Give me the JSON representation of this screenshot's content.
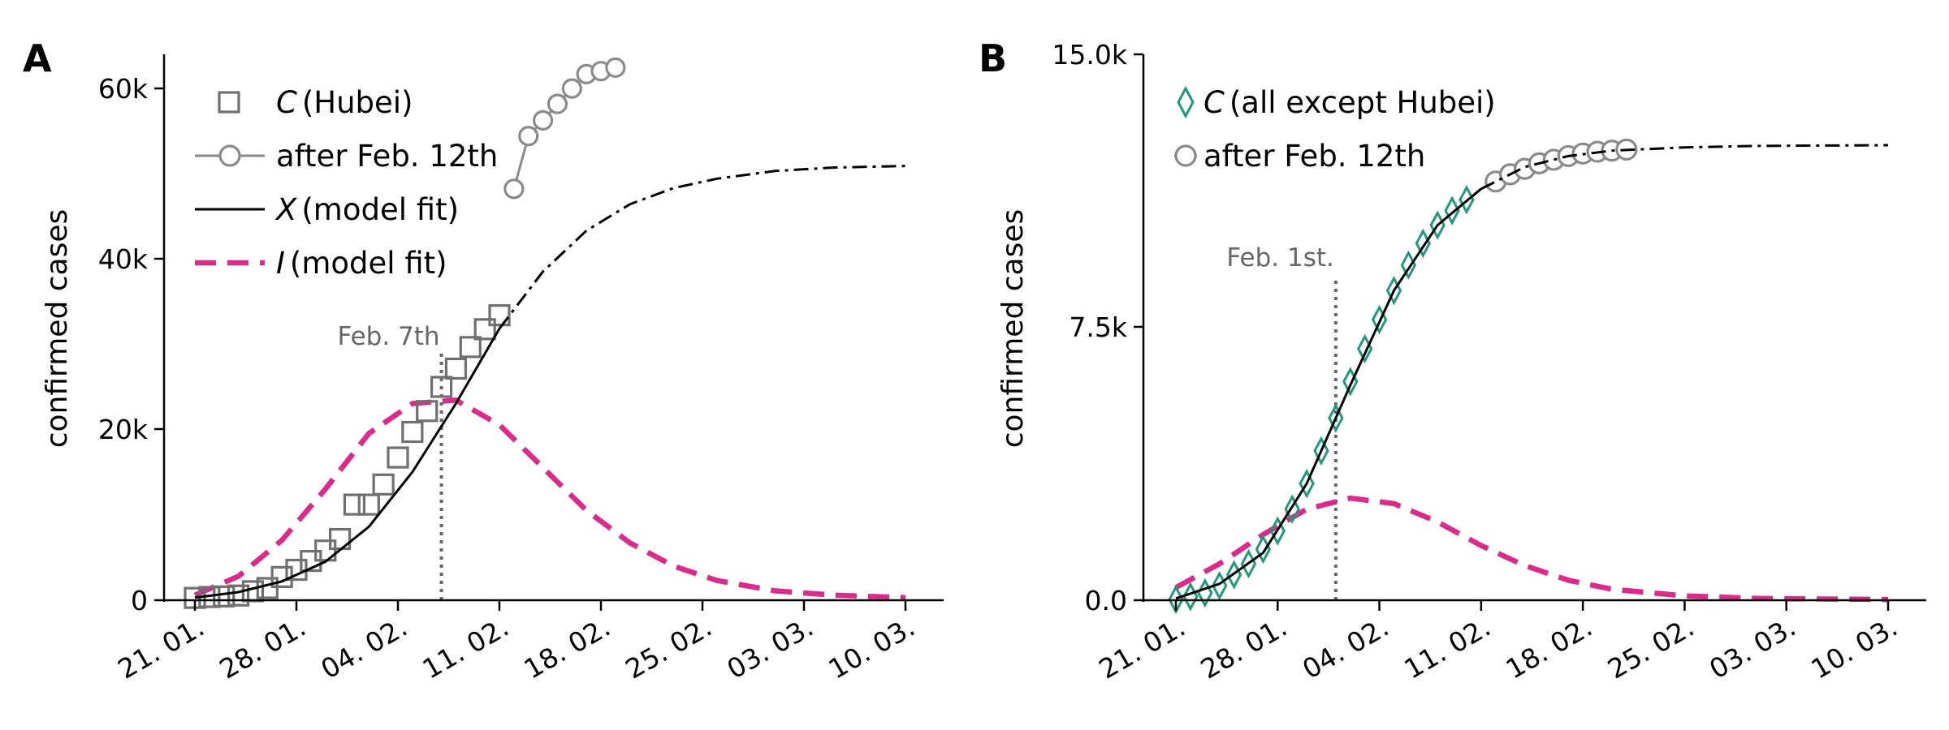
{
  "colors": {
    "data_gray": "#707070",
    "after_gray": "#8a8a8a",
    "model_black": "#000000",
    "infected_pink": "#e0288c",
    "green": "#1e9a78",
    "annot_gray": "#666666"
  },
  "chart_data": [
    {
      "type": "line",
      "panel": "A",
      "ylabel": "confirmed cases",
      "xlabel": "",
      "x_ticks": [
        "21. 01.",
        "28. 01.",
        "04. 02.",
        "11. 02.",
        "18. 02.",
        "25. 02.",
        "03. 03.",
        "10. 03."
      ],
      "y_ticks": [
        "0",
        "20k",
        "40k",
        "60k"
      ],
      "ylim": [
        0,
        64000
      ],
      "xlim": [
        "2020-01-21",
        "2020-03-10"
      ],
      "annotation": {
        "label": "Feb. 7th",
        "x": "2020-02-07"
      },
      "legend": {
        "placement": "top-left",
        "entries": [
          {
            "prefix": "C",
            "text": "(Hubei)",
            "marker": "square"
          },
          {
            "prefix": "",
            "text": "after Feb. 12th",
            "marker": "circle-line"
          },
          {
            "prefix": "X",
            "text": "(model fit)",
            "marker": "solid-line"
          },
          {
            "prefix": "I",
            "text": "(model fit)",
            "marker": "dashed-line"
          }
        ]
      },
      "series": [
        {
          "name": "C (Hubei)",
          "marker": "square",
          "points": [
            [
              "2020-01-21",
              270
            ],
            [
              "2020-01-22",
              375
            ],
            [
              "2020-01-23",
              444
            ],
            [
              "2020-01-24",
              549
            ],
            [
              "2020-01-25",
              1052
            ],
            [
              "2020-01-26",
              1423
            ],
            [
              "2020-01-27",
              2714
            ],
            [
              "2020-01-28",
              3554
            ],
            [
              "2020-01-29",
              4586
            ],
            [
              "2020-01-30",
              5806
            ],
            [
              "2020-01-31",
              7153
            ],
            [
              "2020-02-01",
              11177
            ],
            [
              "2020-02-02",
              11177
            ],
            [
              "2020-02-03",
              13522
            ],
            [
              "2020-02-04",
              16678
            ],
            [
              "2020-02-05",
              19665
            ],
            [
              "2020-02-06",
              22112
            ],
            [
              "2020-02-07",
              24953
            ],
            [
              "2020-02-08",
              27100
            ],
            [
              "2020-02-09",
              29631
            ],
            [
              "2020-02-10",
              31728
            ],
            [
              "2020-02-11",
              33366
            ]
          ]
        },
        {
          "name": "after Feb. 12th",
          "marker": "circle-line",
          "points": [
            [
              "2020-02-12",
              48206
            ],
            [
              "2020-02-13",
              54406
            ],
            [
              "2020-02-14",
              56249
            ],
            [
              "2020-02-15",
              58182
            ],
            [
              "2020-02-16",
              59989
            ],
            [
              "2020-02-17",
              61682
            ],
            [
              "2020-02-18",
              62031
            ],
            [
              "2020-02-19",
              62442
            ]
          ]
        },
        {
          "name": "X (model fit)",
          "style": "solid until 2020-02-11, dash-dot after",
          "points": [
            [
              "2020-01-21",
              300
            ],
            [
              "2020-01-24",
              950
            ],
            [
              "2020-01-27",
              2200
            ],
            [
              "2020-01-30",
              4500
            ],
            [
              "2020-02-02",
              8600
            ],
            [
              "2020-02-05",
              15000
            ],
            [
              "2020-02-08",
              23000
            ],
            [
              "2020-02-11",
              31800
            ],
            [
              "2020-02-14",
              38500
            ],
            [
              "2020-02-17",
              43300
            ],
            [
              "2020-02-20",
              46400
            ],
            [
              "2020-02-23",
              48300
            ],
            [
              "2020-02-26",
              49400
            ],
            [
              "2020-03-01",
              50300
            ],
            [
              "2020-03-05",
              50700
            ],
            [
              "2020-03-10",
              50900
            ]
          ]
        },
        {
          "name": "I (model fit)",
          "style": "dashed",
          "points": [
            [
              "2020-01-21",
              600
            ],
            [
              "2020-01-24",
              2800
            ],
            [
              "2020-01-27",
              7000
            ],
            [
              "2020-01-30",
              13000
            ],
            [
              "2020-02-02",
              19500
            ],
            [
              "2020-02-05",
              23000
            ],
            [
              "2020-02-08",
              23400
            ],
            [
              "2020-02-11",
              20500
            ],
            [
              "2020-02-14",
              15500
            ],
            [
              "2020-02-17",
              10500
            ],
            [
              "2020-02-20",
              6700
            ],
            [
              "2020-02-23",
              4000
            ],
            [
              "2020-02-26",
              2300
            ],
            [
              "2020-03-01",
              1100
            ],
            [
              "2020-03-05",
              600
            ],
            [
              "2020-03-10",
              300
            ]
          ]
        }
      ]
    },
    {
      "type": "line",
      "panel": "B",
      "ylabel": "confirmed cases",
      "xlabel": "",
      "x_ticks": [
        "21. 01.",
        "28. 01.",
        "04. 02.",
        "11. 02.",
        "18. 02.",
        "25. 02.",
        "03. 03.",
        "10. 03."
      ],
      "y_ticks": [
        "0.0",
        "7.5k",
        "15.0k"
      ],
      "ylim": [
        0,
        15000
      ],
      "xlim": [
        "2020-01-21",
        "2020-03-10"
      ],
      "annotation": {
        "label": "Feb. 1st.",
        "x": "2020-02-01"
      },
      "legend": {
        "placement": "top-left",
        "entries": [
          {
            "prefix": "C",
            "text": "(all except Hubei)",
            "marker": "diamond"
          },
          {
            "prefix": "",
            "text": "after Feb. 12th",
            "marker": "circle-line"
          }
        ]
      },
      "series": [
        {
          "name": "C (all except Hubei)",
          "marker": "diamond",
          "points": [
            [
              "2020-01-21",
              20
            ],
            [
              "2020-01-22",
              100
            ],
            [
              "2020-01-23",
              200
            ],
            [
              "2020-01-24",
              400
            ],
            [
              "2020-01-25",
              700
            ],
            [
              "2020-01-26",
              1000
            ],
            [
              "2020-01-27",
              1400
            ],
            [
              "2020-01-28",
              1900
            ],
            [
              "2020-01-29",
              2500
            ],
            [
              "2020-01-30",
              3200
            ],
            [
              "2020-01-31",
              4100
            ],
            [
              "2020-02-01",
              5000
            ],
            [
              "2020-02-02",
              6000
            ],
            [
              "2020-02-03",
              6900
            ],
            [
              "2020-02-04",
              7700
            ],
            [
              "2020-02-05",
              8500
            ],
            [
              "2020-02-06",
              9200
            ],
            [
              "2020-02-07",
              9800
            ],
            [
              "2020-02-08",
              10300
            ],
            [
              "2020-02-09",
              10700
            ],
            [
              "2020-02-10",
              11000
            ]
          ]
        },
        {
          "name": "after Feb. 12th",
          "marker": "circle-line",
          "points": [
            [
              "2020-02-12",
              11500
            ],
            [
              "2020-02-13",
              11700
            ],
            [
              "2020-02-14",
              11850
            ],
            [
              "2020-02-15",
              12000
            ],
            [
              "2020-02-16",
              12100
            ],
            [
              "2020-02-17",
              12200
            ],
            [
              "2020-02-18",
              12270
            ],
            [
              "2020-02-19",
              12320
            ],
            [
              "2020-02-20",
              12350
            ],
            [
              "2020-02-21",
              12380
            ]
          ]
        },
        {
          "name": "X (model fit)",
          "style": "solid until 2020-02-11, dash-dot after",
          "points": [
            [
              "2020-01-21",
              50
            ],
            [
              "2020-01-24",
              450
            ],
            [
              "2020-01-27",
              1300
            ],
            [
              "2020-01-30",
              3200
            ],
            [
              "2020-02-02",
              5900
            ],
            [
              "2020-02-05",
              8500
            ],
            [
              "2020-02-08",
              10300
            ],
            [
              "2020-02-11",
              11300
            ],
            [
              "2020-02-14",
              11900
            ],
            [
              "2020-02-17",
              12200
            ],
            [
              "2020-02-20",
              12350
            ],
            [
              "2020-02-25",
              12440
            ],
            [
              "2020-03-01",
              12480
            ],
            [
              "2020-03-10",
              12500
            ]
          ]
        },
        {
          "name": "I (model fit)",
          "style": "dashed",
          "points": [
            [
              "2020-01-21",
              350
            ],
            [
              "2020-01-24",
              1000
            ],
            [
              "2020-01-27",
              1800
            ],
            [
              "2020-01-30",
              2500
            ],
            [
              "2020-02-02",
              2800
            ],
            [
              "2020-02-05",
              2650
            ],
            [
              "2020-02-08",
              2150
            ],
            [
              "2020-02-11",
              1500
            ],
            [
              "2020-02-14",
              950
            ],
            [
              "2020-02-17",
              550
            ],
            [
              "2020-02-20",
              300
            ],
            [
              "2020-02-25",
              120
            ],
            [
              "2020-03-01",
              50
            ],
            [
              "2020-03-10",
              20
            ]
          ]
        }
      ]
    }
  ]
}
